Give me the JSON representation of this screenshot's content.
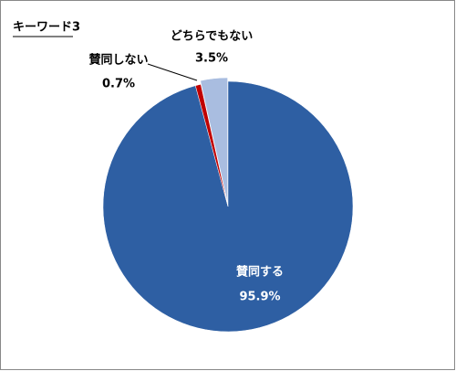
{
  "chart_data": {
    "type": "pie",
    "title": "キーワード3",
    "categories": [
      "賛同する",
      "賛同しない",
      "どちらでもない"
    ],
    "values": [
      95.9,
      0.7,
      3.5
    ],
    "value_labels": [
      "95.9%",
      "0.7%",
      "3.5%"
    ],
    "colors": [
      "#2e5fa3",
      "#c00000",
      "#a9bde0"
    ]
  }
}
